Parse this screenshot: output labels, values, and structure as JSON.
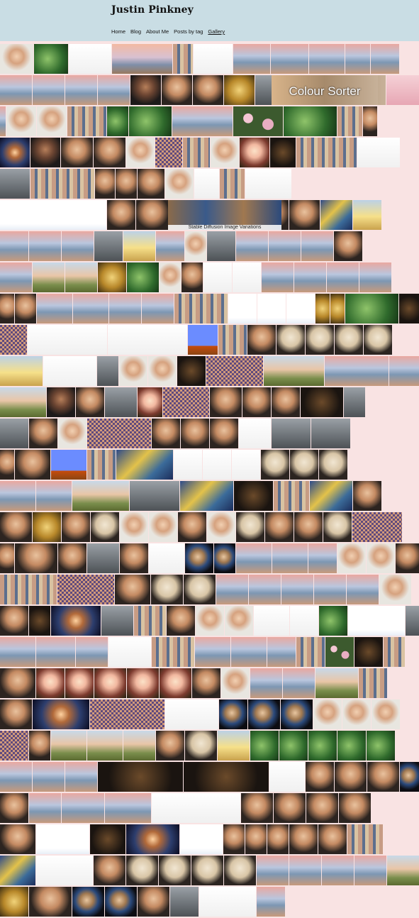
{
  "site": {
    "title": "Justin Pinkney",
    "nav": [
      {
        "label": "Home",
        "current": false
      },
      {
        "label": "Blog",
        "current": false
      },
      {
        "label": "About Me",
        "current": false
      },
      {
        "label": "Posts by tag",
        "current": false
      },
      {
        "label": "Gallery",
        "current": true
      }
    ]
  },
  "gallery": {
    "captions": {
      "colour_sorter": "Colour Sorter",
      "sd_variations": "Stable Diffusion Image Variations"
    }
  }
}
